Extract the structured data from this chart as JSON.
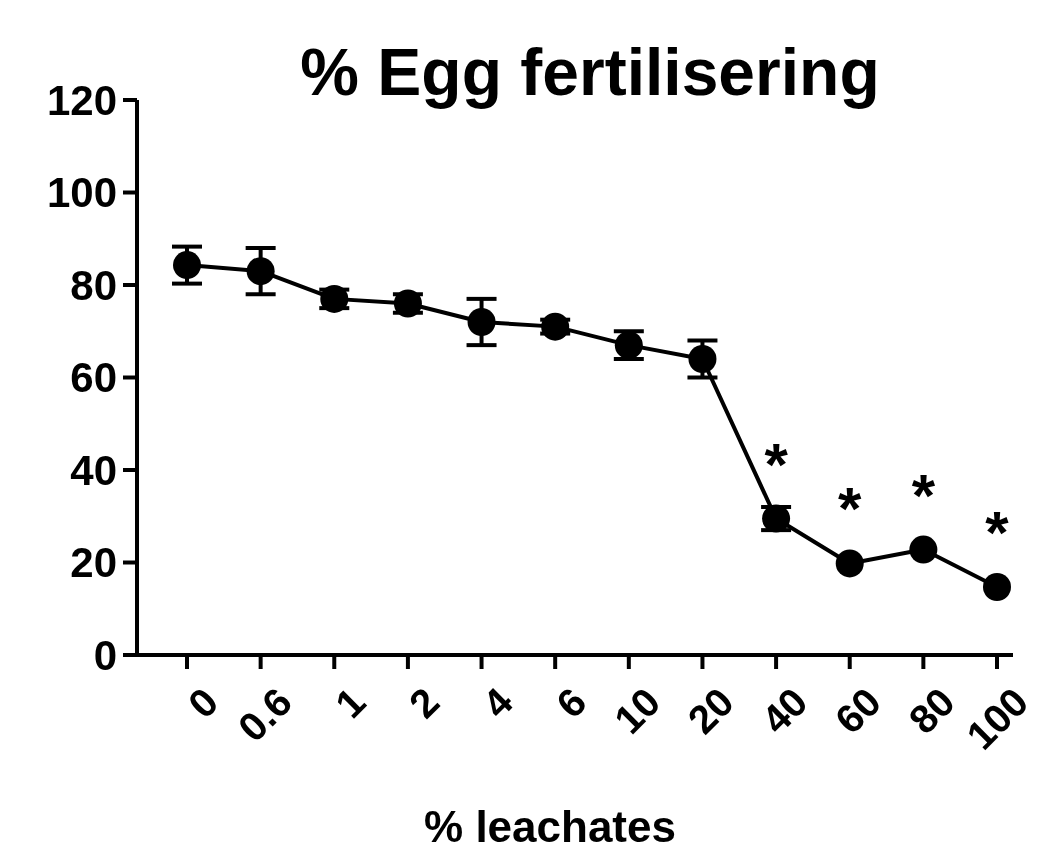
{
  "chart_data": {
    "type": "line",
    "title": "% Egg fertilisering",
    "xlabel": "% leachates",
    "categories": [
      "0",
      "0.6",
      "1",
      "2",
      "4",
      "6",
      "10",
      "20",
      "40",
      "60",
      "80",
      "100"
    ],
    "series": [
      {
        "color": "#000000",
        "values": [
          84.3,
          83,
          77,
          76,
          72,
          71,
          67,
          64,
          29.5,
          19.8,
          22.8,
          14.7
        ],
        "errors": [
          4,
          5,
          2,
          2,
          5,
          1.5,
          3,
          4,
          2.5,
          null,
          null,
          null
        ]
      }
    ],
    "ylim": [
      0,
      120
    ],
    "yticks": [
      0,
      20,
      40,
      60,
      80,
      100,
      120
    ],
    "grid": false,
    "marker": "circle",
    "line_style": "solid",
    "annotations": [
      {
        "text": "*",
        "x": "40",
        "y": 29.5
      },
      {
        "text": "*",
        "x": "60",
        "y": 19.8
      },
      {
        "text": "*",
        "x": "80",
        "y": 22.8
      },
      {
        "text": "*",
        "x": "100",
        "y": 14.7
      }
    ]
  }
}
